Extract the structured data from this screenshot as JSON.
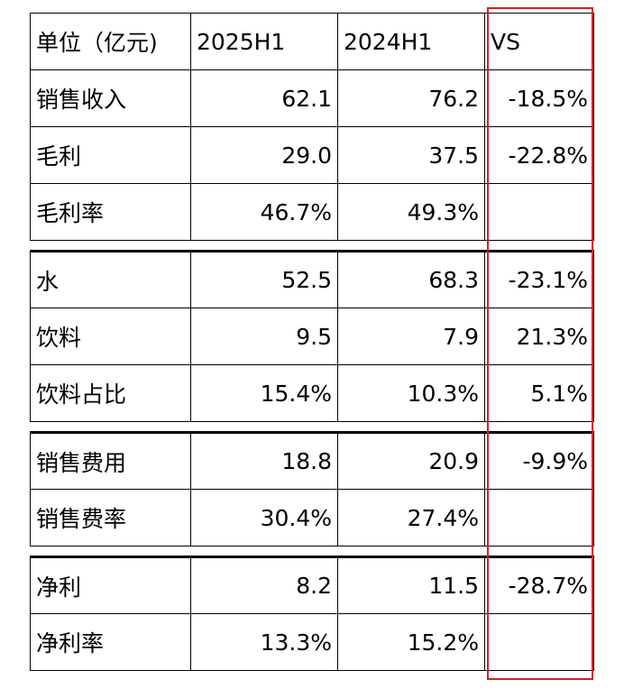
{
  "header": {
    "unit": "单位（亿元)",
    "col1": "2025H1",
    "col2": "2024H1",
    "col3": "VS"
  },
  "groups": [
    {
      "rows": [
        {
          "label": "销售收入",
          "v2025": "62.1",
          "v2024": "76.2",
          "vs": "-18.5%"
        },
        {
          "label": "毛利",
          "v2025": "29.0",
          "v2024": "37.5",
          "vs": "-22.8%"
        },
        {
          "label": "毛利率",
          "v2025": "46.7%",
          "v2024": "49.3%",
          "vs": ""
        }
      ]
    },
    {
      "rows": [
        {
          "label": "水",
          "v2025": "52.5",
          "v2024": "68.3",
          "vs": "-23.1%"
        },
        {
          "label": "饮料",
          "v2025": "9.5",
          "v2024": "7.9",
          "vs": "21.3%"
        },
        {
          "label": "饮料占比",
          "v2025": "15.4%",
          "v2024": "10.3%",
          "vs": "5.1%"
        }
      ]
    },
    {
      "rows": [
        {
          "label": "销售费用",
          "v2025": "18.8",
          "v2024": "20.9",
          "vs": "-9.9%"
        },
        {
          "label": "销售费率",
          "v2025": "30.4%",
          "v2024": "27.4%",
          "vs": ""
        }
      ]
    },
    {
      "rows": [
        {
          "label": "净利",
          "v2025": "8.2",
          "v2024": "11.5",
          "vs": "-28.7%"
        },
        {
          "label": "净利率",
          "v2025": "13.3%",
          "v2024": "15.2%",
          "vs": ""
        }
      ]
    }
  ],
  "colors": {
    "highlight": "#d81e1e",
    "border": "#000000"
  }
}
